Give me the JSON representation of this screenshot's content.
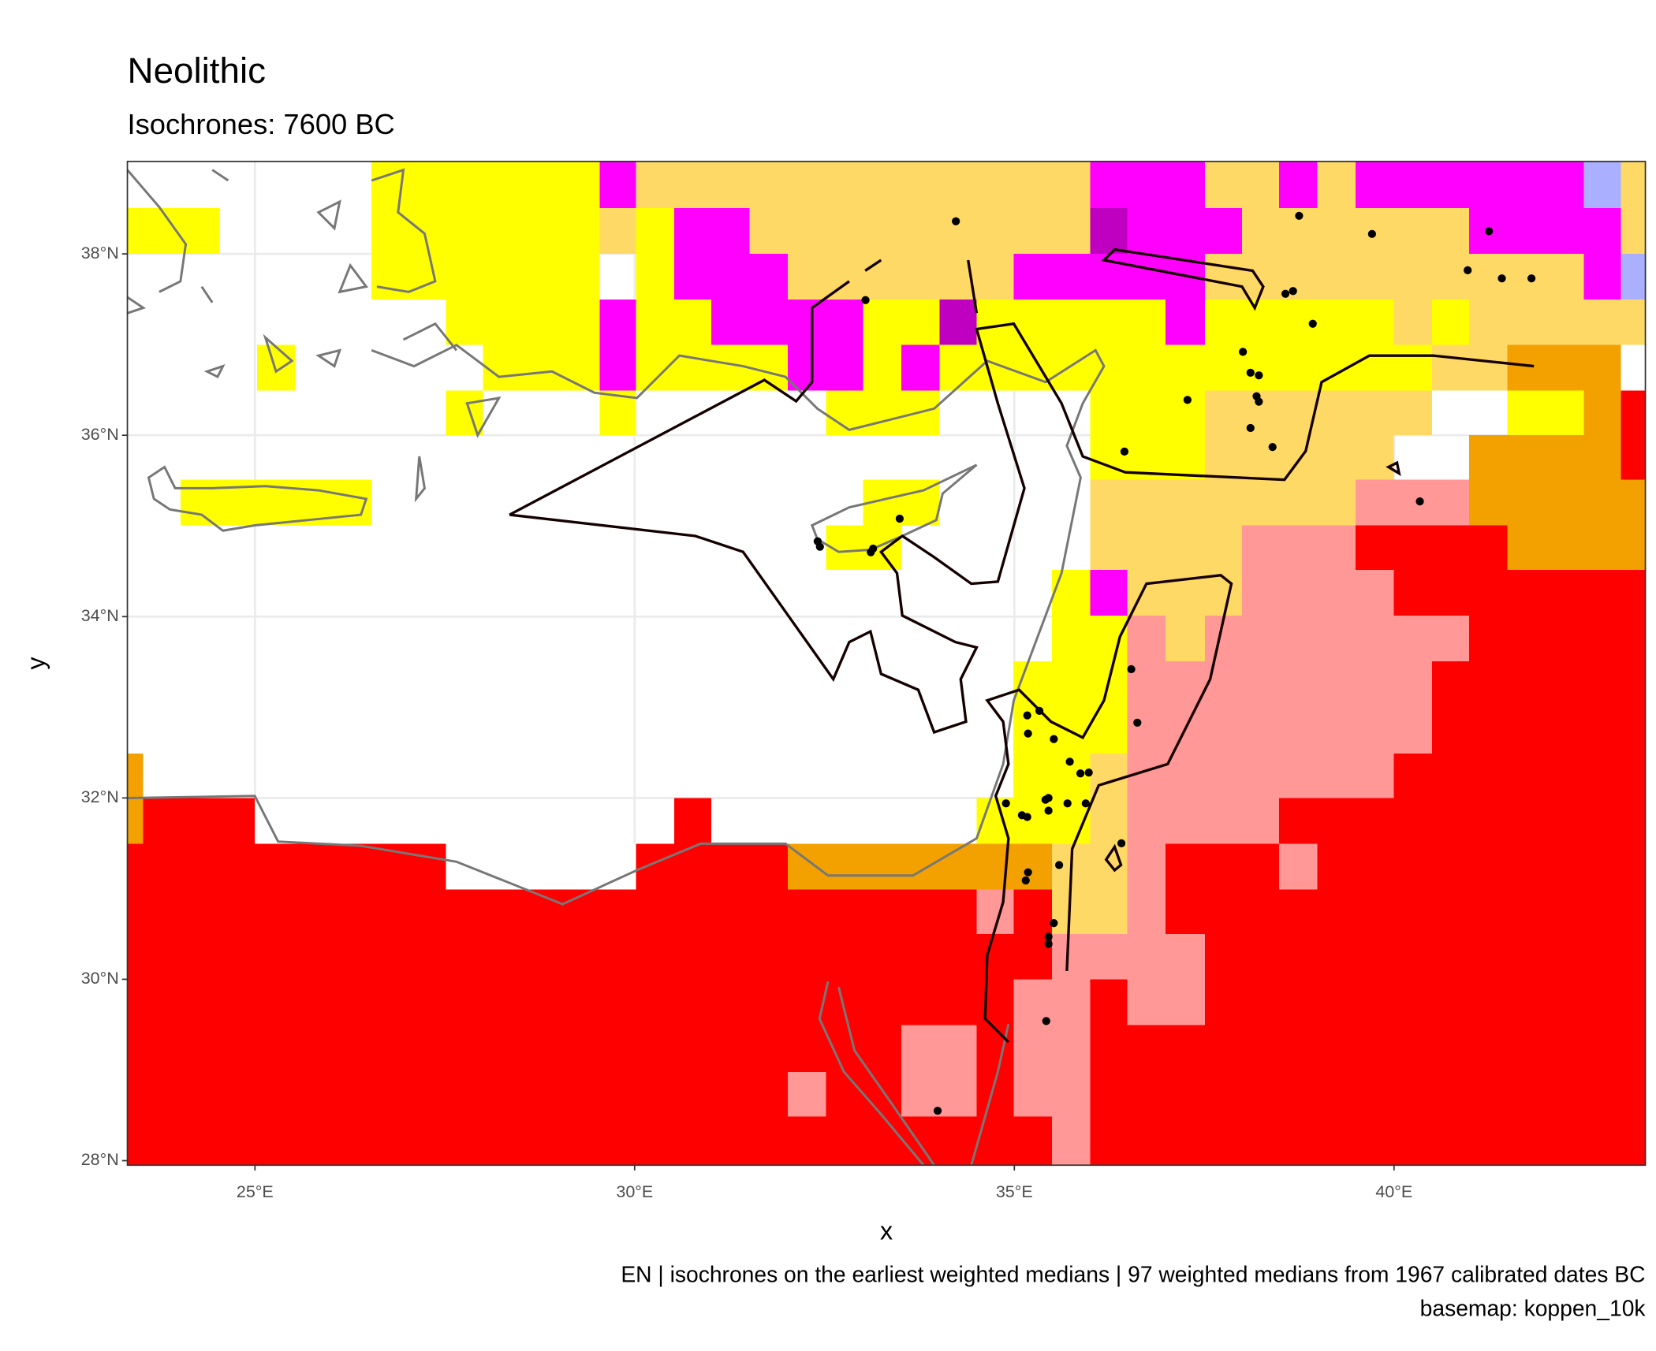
{
  "chart_data": {
    "type": "map",
    "title": "Neolithic",
    "subtitle": "Isochrones: 7600 BC",
    "x_label": "x",
    "y_label": "y",
    "caption": [
      "EN | isochrones on the earliest weighted medians | 97 weighted medians from 1967 calibrated dates BC",
      "basemap: koppen_10k"
    ],
    "xlim": [
      23.32,
      43.31
    ],
    "ylim": [
      27.95,
      39.02
    ],
    "xticks": [
      {
        "value": 25,
        "label": "25°E"
      },
      {
        "value": 30,
        "label": "30°E"
      },
      {
        "value": 35,
        "label": "35°E"
      },
      {
        "value": 40,
        "label": "40°E"
      }
    ],
    "yticks": [
      {
        "value": 28,
        "label": "28°N"
      },
      {
        "value": 30,
        "label": "30°N"
      },
      {
        "value": 32,
        "label": "32°N"
      },
      {
        "value": 34,
        "label": "34°N"
      },
      {
        "value": 36,
        "label": "36°N"
      },
      {
        "value": 38,
        "label": "38°N"
      }
    ],
    "grid": true,
    "color": "#000000",
    "x": [
      34.23,
      33.04,
      38.75,
      39.71,
      41.25,
      40.97,
      41.42,
      41.81,
      38.57,
      38.67,
      38.93,
      38.01,
      38.11,
      38.22,
      38.19,
      38.22,
      37.28,
      38.11,
      38.4,
      36.45,
      40.34,
      33.49,
      32.41,
      32.44,
      33.14,
      33.11,
      36.54,
      36.62,
      35.17,
      35.33,
      35.18,
      35.52,
      35.73,
      35.87,
      35.98,
      35.41,
      35.45,
      34.89,
      35.1,
      35.17,
      35.45,
      35.7,
      35.94,
      36.41,
      35.59,
      35.18,
      35.15,
      35.52,
      35.45,
      35.45,
      35.42,
      33.99
    ],
    "values": [
      38.36,
      37.49,
      38.42,
      38.22,
      38.25,
      37.82,
      37.73,
      37.73,
      37.56,
      37.59,
      37.23,
      36.92,
      36.69,
      36.66,
      36.43,
      36.37,
      36.39,
      36.08,
      35.87,
      35.82,
      35.27,
      35.08,
      34.83,
      34.77,
      34.75,
      34.71,
      33.42,
      32.83,
      32.91,
      32.96,
      32.71,
      32.65,
      32.4,
      32.27,
      32.28,
      31.98,
      32.0,
      31.94,
      31.81,
      31.79,
      31.86,
      31.94,
      31.94,
      31.5,
      31.26,
      31.18,
      31.09,
      30.62,
      30.47,
      30.39,
      29.54,
      28.55
    ]
  }
}
